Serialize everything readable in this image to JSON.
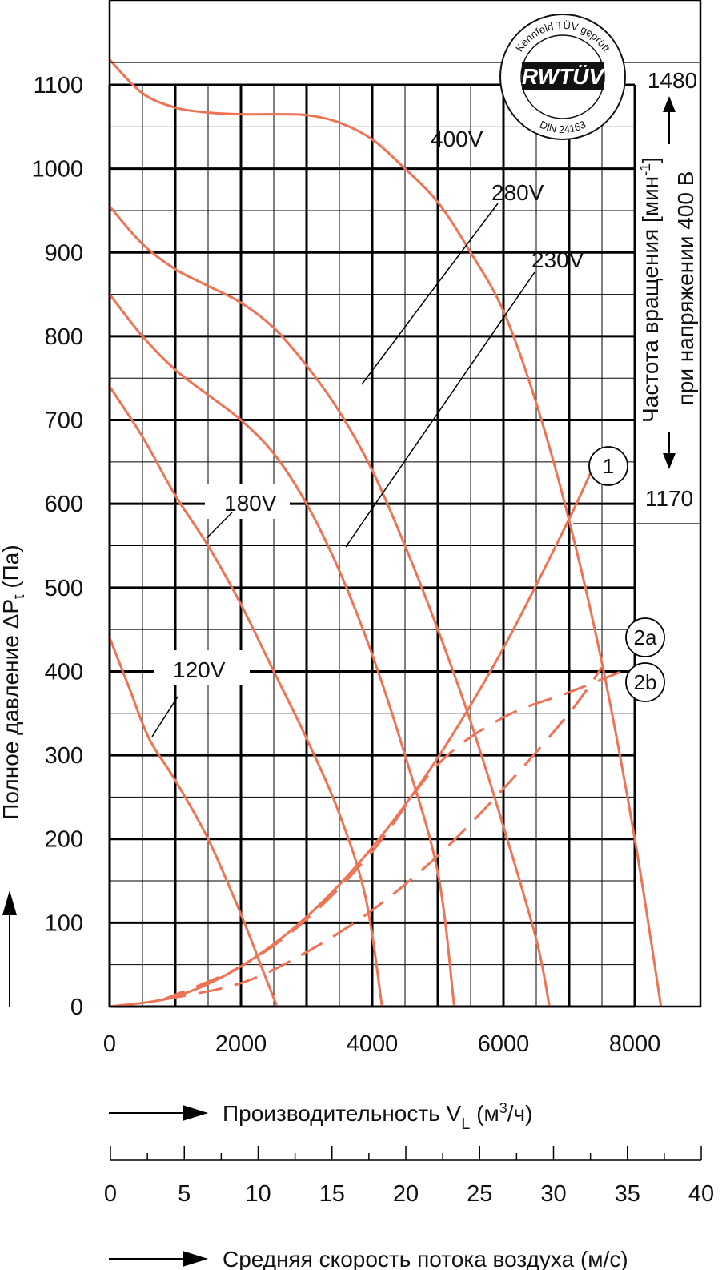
{
  "colors": {
    "curve": "#ee7355",
    "grid": "#000000",
    "background": "#ffffff"
  },
  "y_axis": {
    "label": "Полное давление ΔP",
    "label_sub": "t",
    "label_unit": " (Па)"
  },
  "x_axis": {
    "label": "Производительность V",
    "label_sub": "L",
    "label_unit_open": " (м",
    "label_unit_sup": "3",
    "label_unit_close": "/ч)"
  },
  "velocity_axis": {
    "label": "Средняя скорость потока воздуха (м/с)",
    "ticks": [
      0,
      5,
      10,
      15,
      20,
      25,
      30,
      35,
      40
    ]
  },
  "speed_scale": {
    "top_value": "1480",
    "bottom_value": "1170",
    "label_line1_main": "Частота вращения [мин",
    "label_line1_sup": "-1",
    "label_line1_close": "]",
    "label_line2": "при напряжении 400 В"
  },
  "seal": {
    "top_text": "Kennfeld TÜV geprüft",
    "logo_text": "RWTÜV",
    "bottom_text": "DIN 24163"
  },
  "chart_data": {
    "type": "line",
    "xlabel": "Производительность VL (м3/ч)",
    "ylabel": "Полное давление ΔPt (Па)",
    "xlim": [
      0,
      8000
    ],
    "ylim": [
      0,
      1100
    ],
    "x_ticks": [
      0,
      2000,
      4000,
      6000,
      8000
    ],
    "y_ticks": [
      0,
      100,
      200,
      300,
      400,
      500,
      600,
      700,
      800,
      900,
      1000,
      1100
    ],
    "grid": true,
    "series": [
      {
        "name": "400V",
        "kind": "fan",
        "points": [
          [
            0,
            1130
          ],
          [
            500,
            1090
          ],
          [
            1000,
            1073
          ],
          [
            1500,
            1067
          ],
          [
            2000,
            1065
          ],
          [
            2500,
            1065
          ],
          [
            3000,
            1064
          ],
          [
            3500,
            1055
          ],
          [
            4000,
            1035
          ],
          [
            4500,
            1000
          ],
          [
            5000,
            960
          ],
          [
            5500,
            900
          ],
          [
            6000,
            830
          ],
          [
            6500,
            720
          ],
          [
            7000,
            580
          ],
          [
            7500,
            410
          ],
          [
            8000,
            200
          ],
          [
            8400,
            0
          ]
        ],
        "label": "400V"
      },
      {
        "name": "280V",
        "kind": "fan",
        "points": [
          [
            0,
            955
          ],
          [
            500,
            910
          ],
          [
            1000,
            880
          ],
          [
            1500,
            860
          ],
          [
            2000,
            840
          ],
          [
            2500,
            810
          ],
          [
            3000,
            765
          ],
          [
            3500,
            710
          ],
          [
            4000,
            640
          ],
          [
            4500,
            550
          ],
          [
            5000,
            450
          ],
          [
            5500,
            340
          ],
          [
            6000,
            215
          ],
          [
            6500,
            80
          ],
          [
            6700,
            0
          ]
        ],
        "label": "280V"
      },
      {
        "name": "230V",
        "kind": "fan",
        "points": [
          [
            0,
            850
          ],
          [
            500,
            800
          ],
          [
            1000,
            760
          ],
          [
            1500,
            730
          ],
          [
            2000,
            700
          ],
          [
            2500,
            660
          ],
          [
            3000,
            600
          ],
          [
            3500,
            520
          ],
          [
            4000,
            420
          ],
          [
            4500,
            300
          ],
          [
            5000,
            160
          ],
          [
            5250,
            0
          ]
        ],
        "label": "230V"
      },
      {
        "name": "180V",
        "kind": "fan",
        "points": [
          [
            0,
            740
          ],
          [
            500,
            680
          ],
          [
            1000,
            610
          ],
          [
            1500,
            550
          ],
          [
            2000,
            480
          ],
          [
            2500,
            400
          ],
          [
            3000,
            320
          ],
          [
            3500,
            230
          ],
          [
            3900,
            130
          ],
          [
            4150,
            0
          ]
        ],
        "label": "180V"
      },
      {
        "name": "120V",
        "kind": "fan",
        "points": [
          [
            0,
            440
          ],
          [
            300,
            380
          ],
          [
            600,
            320
          ],
          [
            1000,
            270
          ],
          [
            1500,
            200
          ],
          [
            2000,
            110
          ],
          [
            2300,
            50
          ],
          [
            2550,
            0
          ]
        ],
        "label": "120V"
      },
      {
        "name": "1",
        "kind": "system",
        "points": [
          [
            0,
            0
          ],
          [
            1000,
            12
          ],
          [
            2000,
            48
          ],
          [
            3000,
            107
          ],
          [
            4000,
            190
          ],
          [
            5000,
            297
          ],
          [
            6000,
            428
          ],
          [
            7000,
            582
          ],
          [
            7400,
            650
          ]
        ],
        "label": "1"
      },
      {
        "name": "2a",
        "kind": "system-dashed",
        "points": [
          [
            800,
            8
          ],
          [
            2000,
            48
          ],
          [
            3000,
            104
          ],
          [
            4000,
            185
          ],
          [
            5000,
            289
          ],
          [
            6000,
            345
          ],
          [
            7000,
            375
          ],
          [
            7800,
            400
          ]
        ],
        "label": "2a"
      },
      {
        "name": "2b",
        "kind": "system-dashed",
        "points": [
          [
            800,
            8
          ],
          [
            2000,
            28
          ],
          [
            3000,
            65
          ],
          [
            4000,
            115
          ],
          [
            5000,
            180
          ],
          [
            6000,
            260
          ],
          [
            7000,
            350
          ],
          [
            7500,
            405
          ]
        ],
        "label": "2b"
      }
    ]
  }
}
